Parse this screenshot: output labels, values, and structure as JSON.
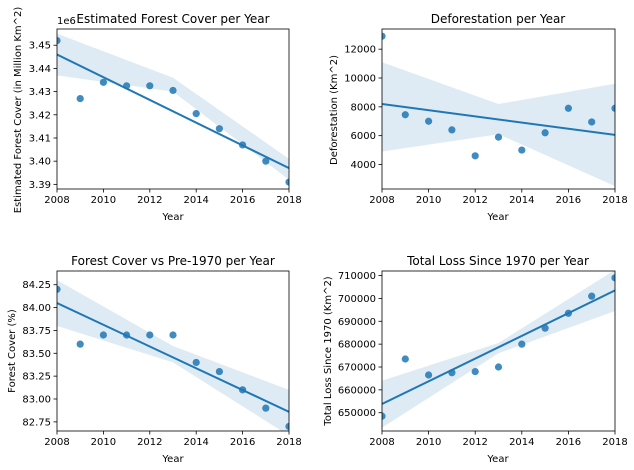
{
  "colors": {
    "series": "#1f77b4",
    "band": "#1f77b4"
  },
  "chart_data": [
    {
      "type": "scatter",
      "title": "Estimated Forest Cover per Year",
      "xlabel": "Year",
      "ylabel": "Estimated Forest Cover (in Million Km^2)",
      "offset_label": "1e6",
      "x": [
        2008,
        2009,
        2010,
        2011,
        2012,
        2013,
        2014,
        2015,
        2016,
        2017,
        2018
      ],
      "y": [
        3452000,
        3427000,
        3434000,
        3432500,
        3432500,
        3430500,
        3420500,
        3414000,
        3407000,
        3400000,
        3391000
      ],
      "xlim": [
        2008,
        2018
      ],
      "ylim": [
        3388000,
        3457000
      ],
      "xticks": [
        "2008",
        "2010",
        "2012",
        "2014",
        "2016",
        "2018"
      ],
      "yticks": [
        "3.39",
        "3.40",
        "3.41",
        "3.42",
        "3.43",
        "3.44",
        "3.45"
      ],
      "ytick_values": [
        3390000,
        3400000,
        3410000,
        3420000,
        3430000,
        3440000,
        3450000
      ],
      "regression": {
        "start": 3446000,
        "end": 3397000
      },
      "band_upper": [
        3455000,
        3436000,
        3401000
      ],
      "band_lower": [
        3437000,
        3430000,
        3392000
      ],
      "grid": false
    },
    {
      "type": "scatter",
      "title": "Deforestation per Year",
      "xlabel": "Year",
      "ylabel": "Deforestation (Km^2)",
      "offset_label": "",
      "x": [
        2008,
        2009,
        2010,
        2011,
        2012,
        2013,
        2014,
        2015,
        2016,
        2017,
        2018
      ],
      "y": [
        12900,
        7450,
        7000,
        6400,
        4600,
        5900,
        5000,
        6200,
        7900,
        6950,
        7900
      ],
      "xlim": [
        2008,
        2018
      ],
      "ylim": [
        2300,
        13400
      ],
      "xticks": [
        "2008",
        "2010",
        "2012",
        "2014",
        "2016",
        "2018"
      ],
      "yticks": [
        "4000",
        "6000",
        "8000",
        "10000",
        "12000"
      ],
      "ytick_values": [
        4000,
        6000,
        8000,
        10000,
        12000
      ],
      "regression": {
        "start": 8200,
        "end": 6050
      },
      "band_upper": [
        11100,
        8200,
        9600
      ],
      "band_lower": [
        4900,
        6100,
        2500
      ],
      "grid": false
    },
    {
      "type": "scatter",
      "title": "Forest Cover vs Pre-1970 per Year",
      "xlabel": "Year",
      "ylabel": "Forest Cover (%)",
      "offset_label": "",
      "x": [
        2008,
        2009,
        2010,
        2011,
        2012,
        2013,
        2014,
        2015,
        2016,
        2017,
        2018
      ],
      "y": [
        84.2,
        83.6,
        83.7,
        83.7,
        83.7,
        83.7,
        83.4,
        83.3,
        83.1,
        82.9,
        82.7
      ],
      "xlim": [
        2008,
        2018
      ],
      "ylim": [
        82.65,
        84.4
      ],
      "xticks": [
        "2008",
        "2010",
        "2012",
        "2014",
        "2016",
        "2018"
      ],
      "yticks": [
        "82.75",
        "83.00",
        "83.25",
        "83.50",
        "83.75",
        "84.00",
        "84.25"
      ],
      "ytick_values": [
        82.75,
        83.0,
        83.25,
        83.5,
        83.75,
        84.0,
        84.25
      ],
      "regression": {
        "start": 84.05,
        "end": 82.86
      },
      "band_upper": [
        84.3,
        83.58,
        83.1
      ],
      "band_lower": [
        83.8,
        83.4,
        82.6
      ],
      "grid": false
    },
    {
      "type": "scatter",
      "title": "Total Loss Since 1970 per Year",
      "xlabel": "Year",
      "ylabel": "Total Loss Since 1970 (Km^2)",
      "offset_label": "",
      "x": [
        2008,
        2009,
        2010,
        2011,
        2012,
        2013,
        2014,
        2015,
        2016,
        2017,
        2018
      ],
      "y": [
        648500,
        673500,
        666500,
        667500,
        668000,
        670000,
        680000,
        687000,
        693500,
        701000,
        709000
      ],
      "xlim": [
        2008,
        2018
      ],
      "ylim": [
        642000,
        712000
      ],
      "xticks": [
        "2008",
        "2010",
        "2012",
        "2014",
        "2016",
        "2018"
      ],
      "yticks": [
        "650000",
        "660000",
        "670000",
        "680000",
        "690000",
        "700000",
        "710000"
      ],
      "ytick_values": [
        650000,
        660000,
        670000,
        680000,
        690000,
        700000,
        710000
      ],
      "regression": {
        "start": 653800,
        "end": 703500
      },
      "band_upper": [
        664000,
        680500,
        712500
      ],
      "band_lower": [
        643500,
        676000,
        694500
      ],
      "grid": false
    }
  ]
}
